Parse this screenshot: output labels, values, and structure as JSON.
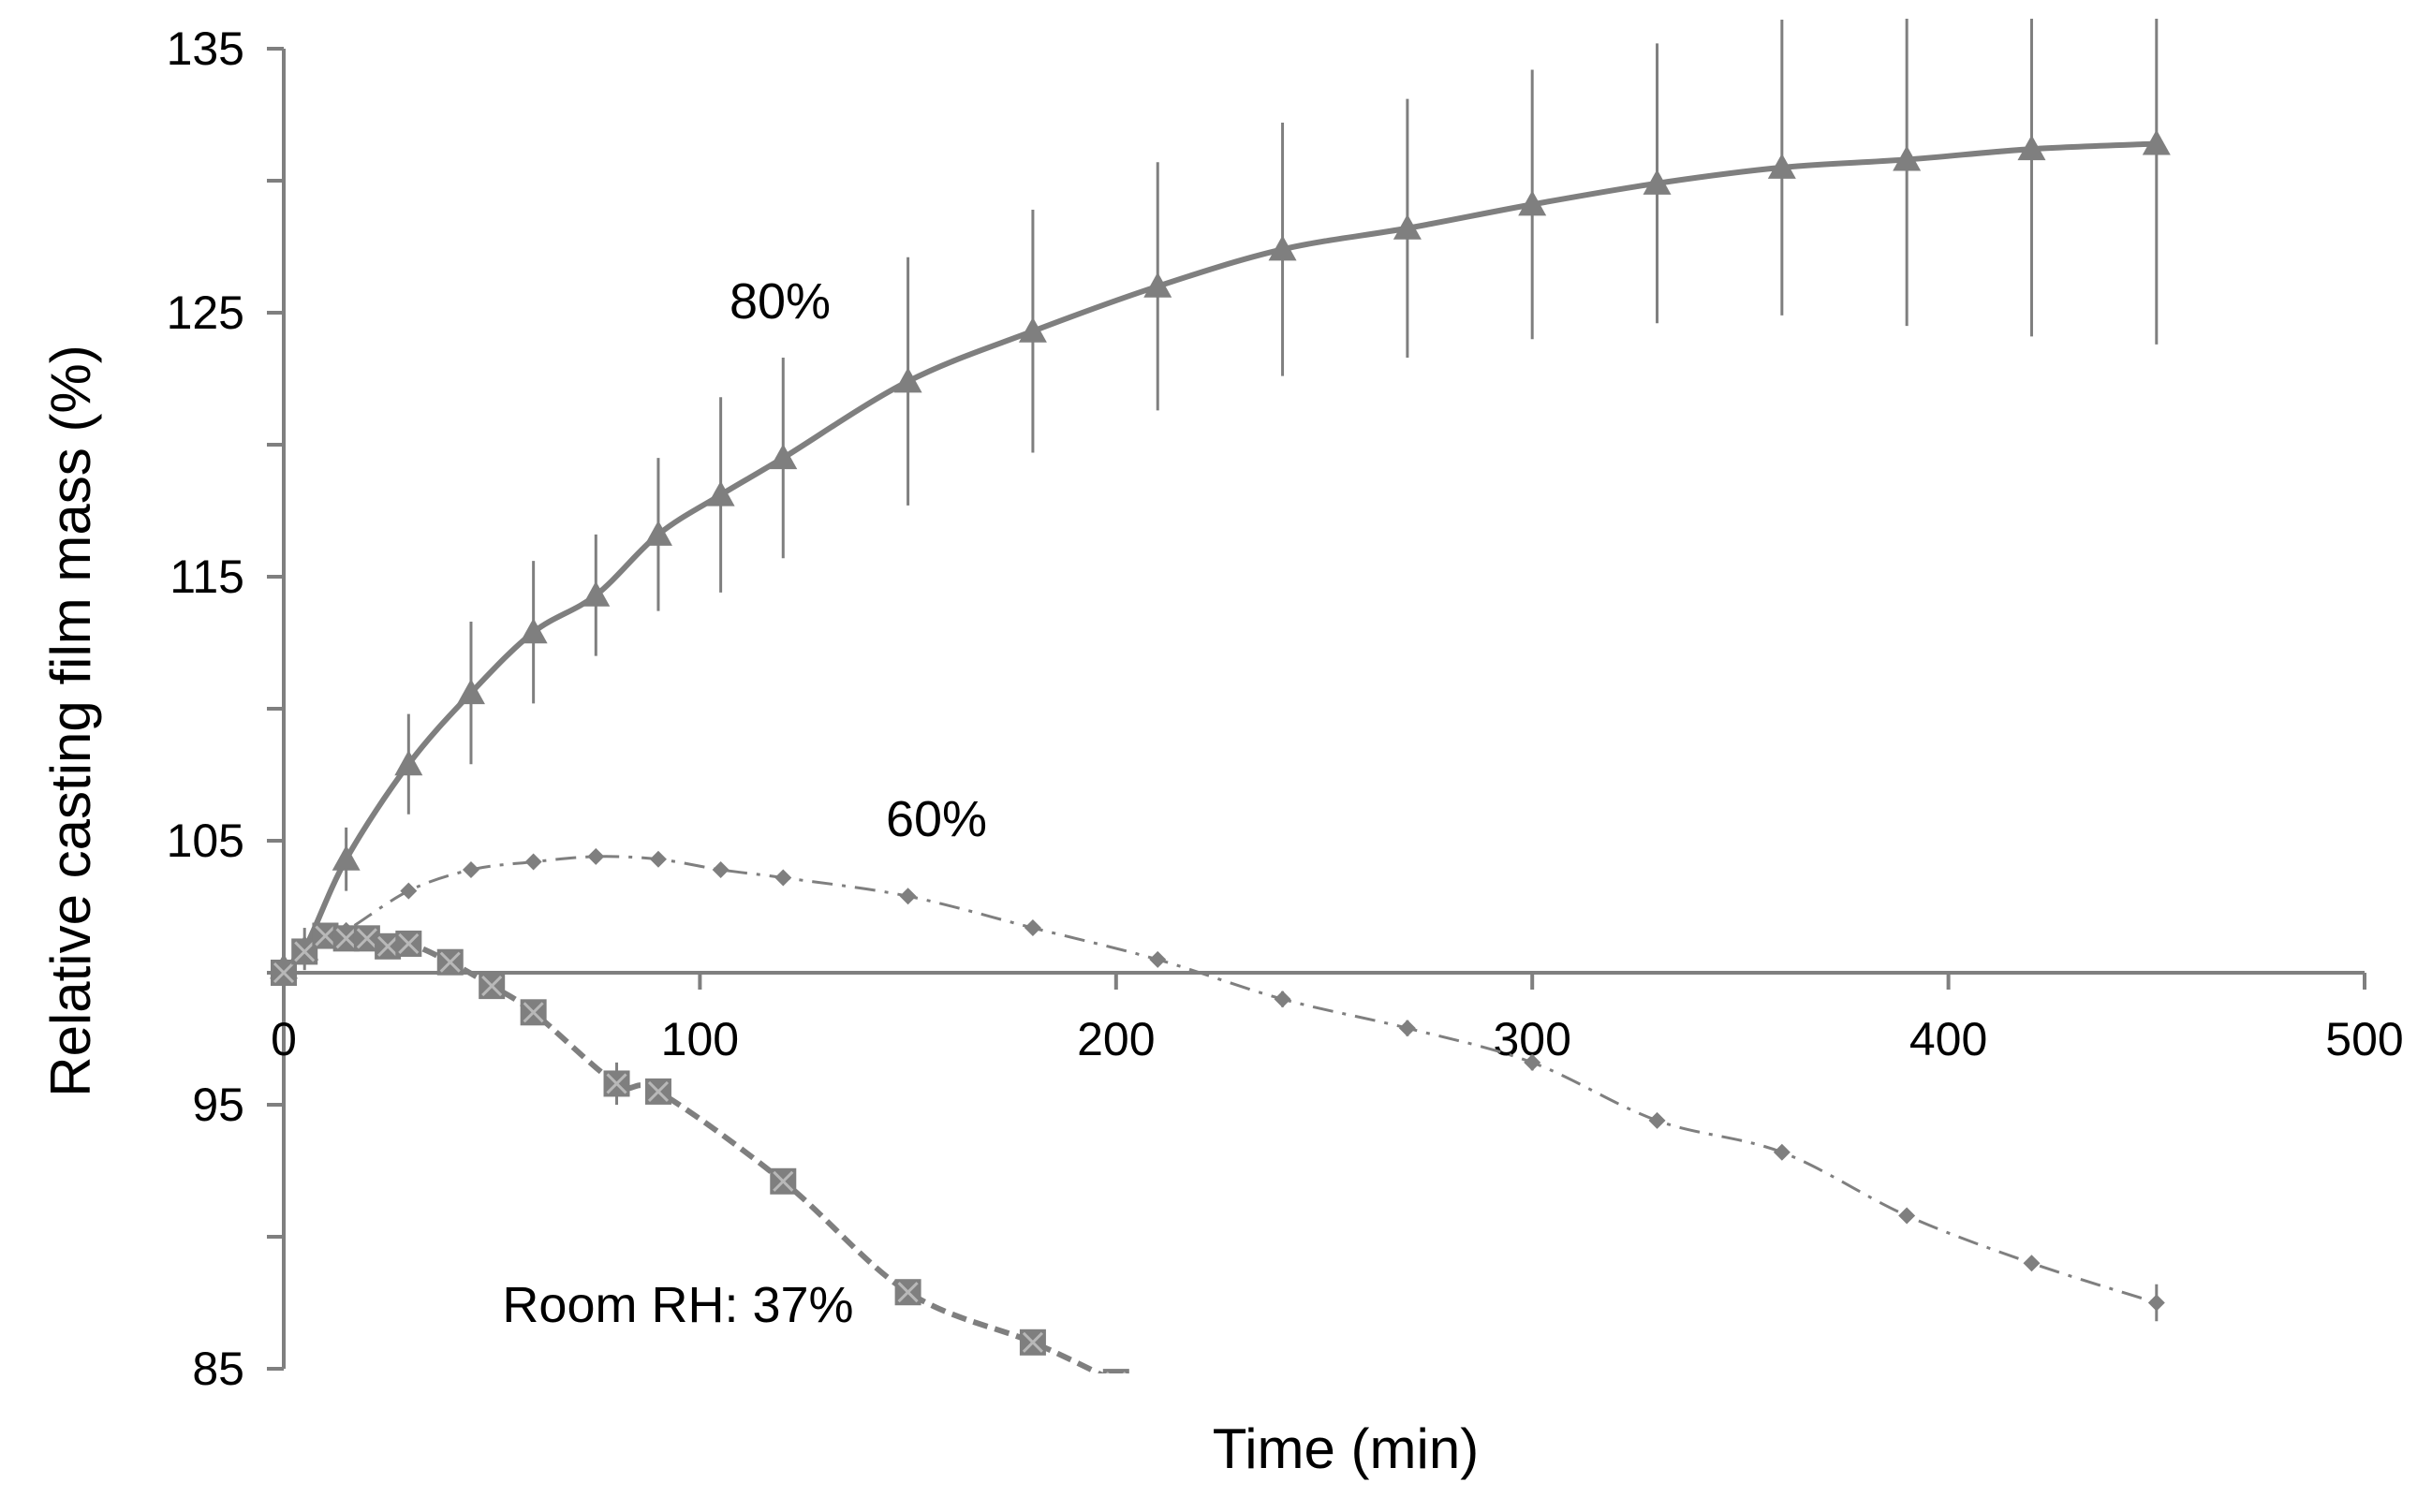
{
  "chart_data": {
    "type": "line",
    "title": "",
    "xlabel": "Time (min)",
    "ylabel": "Relative casting film mass (%)",
    "xlim": [
      0,
      500
    ],
    "ylim": [
      85,
      135
    ],
    "xticks": [
      "0",
      "100",
      "200",
      "300",
      "400",
      "500"
    ],
    "yticks": [
      "85",
      "95",
      "105",
      "115",
      "125",
      "135"
    ],
    "x_axis_crosses_at_y": 100,
    "grid": false,
    "legend": "none",
    "series_color": "#7f7f7f",
    "annotations": [
      "80%",
      "60%",
      "Room RH: 37%"
    ],
    "series": [
      {
        "label": "80%",
        "line_style": "solid",
        "marker": "triangle",
        "x": [
          0,
          5,
          15,
          30,
          45,
          60,
          75,
          90,
          105,
          120,
          150,
          180,
          210,
          240,
          270,
          300,
          330,
          360,
          390,
          420,
          450
        ],
        "y": [
          100.2,
          100.9,
          104.3,
          107.9,
          110.6,
          112.9,
          114.3,
          116.6,
          118.1,
          119.5,
          122.4,
          124.3,
          126.0,
          127.4,
          128.2,
          129.1,
          129.9,
          130.5,
          130.8,
          131.2,
          131.4
        ],
        "err": [
          0.3,
          0.8,
          1.2,
          1.9,
          2.7,
          2.7,
          2.3,
          2.9,
          3.7,
          3.8,
          4.7,
          4.6,
          4.7,
          4.8,
          4.9,
          5.1,
          5.3,
          5.6,
          6.3,
          7.1,
          7.6
        ]
      },
      {
        "label": "60%",
        "line_style": "dash-dot",
        "marker": "diamond",
        "x": [
          0,
          5,
          10,
          15,
          30,
          45,
          60,
          75,
          90,
          105,
          120,
          150,
          180,
          210,
          240,
          270,
          300,
          330,
          360,
          390,
          420,
          450
        ],
        "y": [
          100.1,
          100.6,
          101.4,
          101.6,
          103.1,
          103.9,
          104.2,
          104.4,
          104.3,
          103.9,
          103.6,
          102.9,
          101.7,
          100.5,
          99.0,
          97.9,
          96.6,
          94.4,
          93.2,
          90.8,
          89.0,
          87.5
        ],
        "err": [
          0.1,
          0.1,
          0.1,
          0.1,
          0.1,
          0.1,
          0.1,
          0.1,
          0.1,
          0.1,
          0.1,
          0.1,
          0.1,
          0.1,
          0.3,
          0.3,
          0.3,
          0.1,
          0.1,
          0.1,
          0.1,
          0.7
        ]
      },
      {
        "label": "Room RH: 37%",
        "line_style": "dashed",
        "marker": "square-x",
        "x": [
          0,
          5,
          10,
          15,
          20,
          25,
          30,
          40,
          50,
          60,
          80,
          90,
          120,
          150,
          180,
          200
        ],
        "y": [
          100.0,
          100.8,
          101.4,
          101.3,
          101.3,
          101.0,
          101.1,
          100.4,
          99.5,
          98.5,
          95.8,
          95.5,
          92.1,
          87.9,
          86.0,
          84.5
        ],
        "err": [
          0.1,
          0.1,
          0.1,
          0.1,
          0.1,
          0.1,
          0.1,
          0.1,
          0.4,
          0.1,
          0.8,
          0.3,
          0.4,
          0.2,
          0.2,
          0.0
        ]
      }
    ]
  }
}
